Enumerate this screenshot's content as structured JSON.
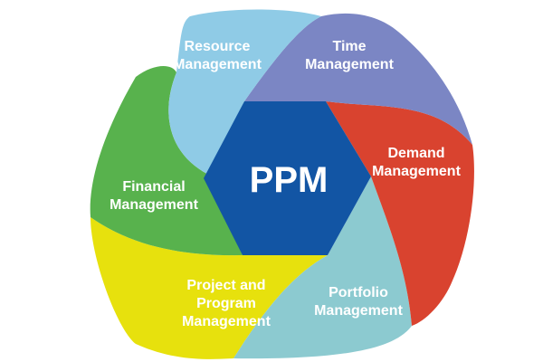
{
  "center": {
    "label": "PPM",
    "color": "#1255a4"
  },
  "segments": [
    {
      "id": "resource",
      "lines": [
        "Resource",
        "Management"
      ],
      "color": "#8fcbe6"
    },
    {
      "id": "time",
      "lines": [
        "Time",
        "Management"
      ],
      "color": "#7b86c4"
    },
    {
      "id": "demand",
      "lines": [
        "Demand",
        "Management"
      ],
      "color": "#d9432f"
    },
    {
      "id": "portfolio",
      "lines": [
        "Portfolio",
        "Management"
      ],
      "color": "#8ccad0"
    },
    {
      "id": "project",
      "lines": [
        "Project and",
        "Program",
        "Management"
      ],
      "color": "#e7e10d"
    },
    {
      "id": "financial",
      "lines": [
        "Financial",
        "Management"
      ],
      "color": "#58b24d"
    }
  ]
}
